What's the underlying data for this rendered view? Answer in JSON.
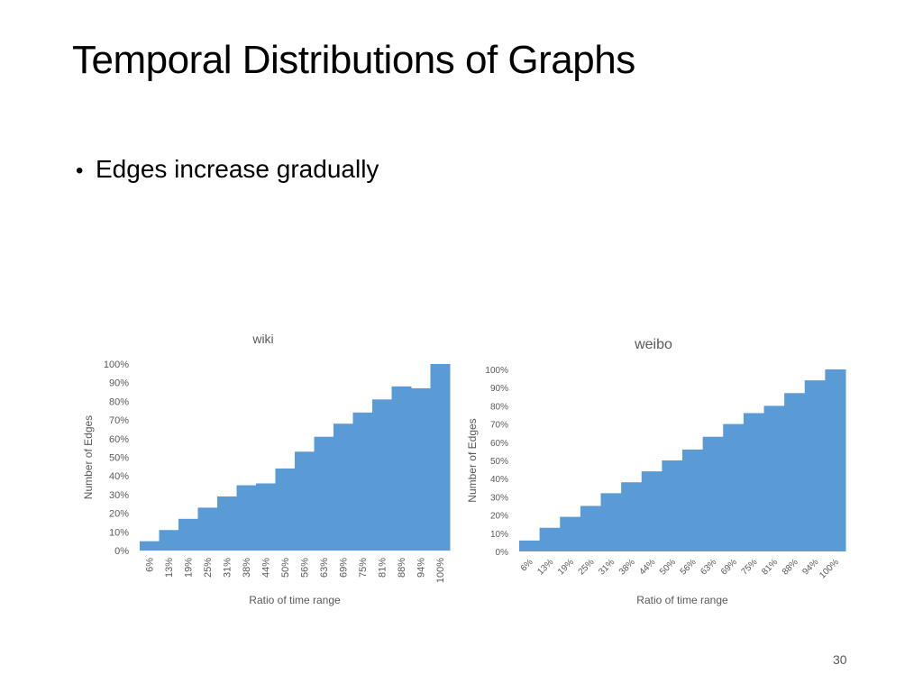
{
  "slide": {
    "title": "Temporal Distributions of Graphs",
    "bullet": "Edges increase gradually",
    "page_number": "30"
  },
  "colors": {
    "bar_fill": "#5B9BD5",
    "axis_text": "#595959"
  },
  "chart_data": [
    {
      "type": "bar",
      "title": "wiki",
      "xlabel": "Ratio of time range",
      "ylabel": "Number of Edges",
      "categories": [
        "6%",
        "13%",
        "19%",
        "25%",
        "31%",
        "38%",
        "44%",
        "50%",
        "56%",
        "63%",
        "69%",
        "75%",
        "81%",
        "88%",
        "94%",
        "100%"
      ],
      "values": [
        5,
        11,
        17,
        23,
        29,
        35,
        36,
        44,
        53,
        61,
        68,
        74,
        81,
        88,
        87,
        100
      ],
      "ylim": [
        0,
        100
      ],
      "yticks": [
        "0%",
        "10%",
        "20%",
        "30%",
        "40%",
        "50%",
        "60%",
        "70%",
        "80%",
        "90%",
        "100%"
      ],
      "grid": false,
      "legend": "none"
    },
    {
      "type": "bar",
      "title": "weibo",
      "xlabel": "Ratio of time range",
      "ylabel": "Number of Edges",
      "categories": [
        "6%",
        "13%",
        "19%",
        "25%",
        "31%",
        "38%",
        "44%",
        "50%",
        "56%",
        "63%",
        "69%",
        "75%",
        "81%",
        "88%",
        "94%",
        "100%"
      ],
      "values": [
        6,
        13,
        19,
        25,
        32,
        38,
        44,
        50,
        56,
        63,
        70,
        76,
        80,
        87,
        94,
        100
      ],
      "ylim": [
        0,
        100
      ],
      "yticks": [
        "0%",
        "10%",
        "20%",
        "30%",
        "40%",
        "50%",
        "60%",
        "70%",
        "80%",
        "90%",
        "100%"
      ],
      "grid": false,
      "legend": "none"
    }
  ]
}
